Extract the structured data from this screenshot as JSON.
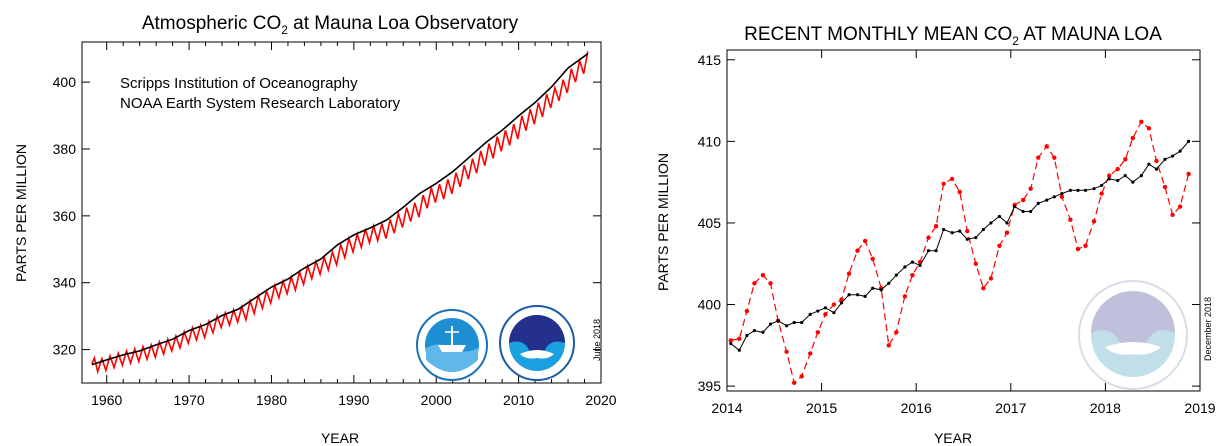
{
  "chart_data": [
    {
      "type": "line",
      "title_main": "Atmospheric CO",
      "title_sub": "2",
      "title_rest": " at Mauna Loa Observatory",
      "xlabel": "YEAR",
      "ylabel": "PARTS PER MILLION",
      "xlim": [
        1957,
        2020
      ],
      "ylim": [
        310,
        412
      ],
      "xticks": [
        "1960",
        "1970",
        "1980",
        "1990",
        "2000",
        "2010",
        "2020"
      ],
      "yticks": [
        "320",
        "340",
        "360",
        "380",
        "400"
      ],
      "annotations": [
        "Scripps Institution of Oceanography",
        "NOAA Earth System Research Laboratory"
      ],
      "date_stamp": "June 2018",
      "series": [
        {
          "color": "#ff0000",
          "x": [
            1958.2,
            1958.5,
            1958.9,
            1959.4,
            1959.9,
            1960.4,
            1960.9,
            1961.4,
            1961.9,
            1962.4,
            1962.9,
            1963.4,
            1963.9,
            1964.4,
            1964.9,
            1965.4,
            1965.9,
            1966.4,
            1966.9,
            1967.4,
            1967.9,
            1968.4,
            1968.9,
            1969.4,
            1969.9,
            1970.4,
            1970.9,
            1971.4,
            1971.9,
            1972.4,
            1972.9,
            1973.4,
            1973.9,
            1974.4,
            1974.9,
            1975.4,
            1975.9,
            1976.4,
            1976.9,
            1977.4,
            1977.9,
            1978.4,
            1978.9,
            1979.4,
            1979.9,
            1980.4,
            1980.9,
            1981.4,
            1981.9,
            1982.4,
            1982.9,
            1983.4,
            1983.9,
            1984.4,
            1984.9,
            1985.4,
            1985.9,
            1986.4,
            1986.9,
            1987.4,
            1987.9,
            1988.4,
            1988.9,
            1989.4,
            1989.9,
            1990.4,
            1990.9,
            1991.4,
            1991.9,
            1992.4,
            1992.9,
            1993.4,
            1993.9,
            1994.4,
            1994.9,
            1995.4,
            1995.9,
            1996.4,
            1996.9,
            1997.4,
            1997.9,
            1998.4,
            1998.9,
            1999.4,
            1999.9,
            2000.4,
            2000.9,
            2001.4,
            2001.9,
            2002.4,
            2002.9,
            2003.4,
            2003.9,
            2004.4,
            2004.9,
            2005.4,
            2005.9,
            2006.4,
            2006.9,
            2007.4,
            2007.9,
            2008.4,
            2008.9,
            2009.4,
            2009.9,
            2010.4,
            2010.9,
            2011.4,
            2011.9,
            2012.4,
            2012.9,
            2013.4,
            2013.9,
            2014.4,
            2014.9,
            2015.4,
            2015.9,
            2016.4,
            2016.9,
            2017.4,
            2017.9,
            2018.4
          ],
          "y": [
            315.7,
            317.5,
            313.4,
            317.3,
            313.8,
            318.1,
            314.6,
            318.9,
            315.3,
            319.6,
            315.9,
            320.2,
            316.4,
            320.9,
            317.1,
            321.4,
            317.7,
            322.3,
            318.6,
            323.1,
            319.6,
            324.0,
            320.5,
            325.3,
            321.9,
            326.5,
            322.9,
            327.3,
            323.6,
            328.4,
            325.0,
            330.0,
            326.6,
            331.0,
            327.3,
            331.9,
            328.2,
            332.8,
            328.9,
            334.6,
            330.8,
            336.1,
            332.3,
            337.5,
            333.9,
            339.2,
            335.5,
            340.5,
            336.7,
            341.7,
            337.8,
            343.2,
            339.5,
            345.0,
            341.2,
            346.4,
            342.5,
            347.6,
            343.8,
            349.2,
            345.4,
            351.4,
            347.5,
            353.2,
            349.2,
            354.6,
            350.6,
            356.1,
            351.9,
            357.0,
            352.6,
            357.6,
            353.2,
            358.9,
            354.8,
            360.6,
            356.5,
            362.5,
            358.3,
            363.9,
            359.6,
            366.2,
            362.3,
            368.4,
            364.0,
            369.5,
            365.0,
            370.9,
            366.6,
            372.9,
            368.7,
            375.1,
            371.0,
            377.1,
            372.8,
            379.4,
            375.0,
            381.6,
            377.2,
            383.7,
            379.3,
            385.6,
            381.1,
            387.4,
            383.0,
            389.9,
            385.5,
            391.9,
            387.4,
            393.8,
            389.6,
            396.4,
            392.3,
            398.3,
            394.4,
            400.7,
            396.8,
            404.0,
            400.0,
            406.5,
            402.5,
            409.2
          ]
        },
        {
          "color": "#000000",
          "x": [
            1958.2,
            1960,
            1962,
            1964,
            1966,
            1968,
            1970,
            1972,
            1974,
            1976,
            1978,
            1980,
            1982,
            1984,
            1986,
            1988,
            1990,
            1992,
            1994,
            1996,
            1998,
            2000,
            2002,
            2004,
            2006,
            2008,
            2010,
            2012,
            2014,
            2016,
            2018.4
          ],
          "y": [
            315.5,
            316.9,
            318.4,
            319.6,
            321.4,
            323.1,
            325.7,
            327.5,
            330.2,
            332.1,
            335.4,
            338.7,
            341.1,
            344.4,
            347.1,
            351.3,
            354.3,
            356.4,
            358.8,
            362.6,
            366.7,
            369.7,
            373.2,
            377.5,
            381.9,
            385.6,
            389.9,
            393.9,
            398.6,
            404.2,
            408.5
          ]
        }
      ]
    },
    {
      "type": "line",
      "title_main": "RECENT MONTHLY MEAN CO",
      "title_sub": "2",
      "title_rest": " AT MAUNA LOA",
      "xlabel": "YEAR",
      "ylabel": "PARTS PER MILLION",
      "xlim": [
        2014,
        2019
      ],
      "ylim": [
        394.7,
        415.6
      ],
      "xticks": [
        "2014",
        "2015",
        "2016",
        "2017",
        "2018",
        "2019"
      ],
      "yticks": [
        "395",
        "400",
        "405",
        "410",
        "415"
      ],
      "date_stamp": "December 2018",
      "series": [
        {
          "color": "#ff0000",
          "style": "dashed",
          "x": [
            2014.04,
            2014.13,
            2014.21,
            2014.29,
            2014.38,
            2014.46,
            2014.54,
            2014.63,
            2014.71,
            2014.79,
            2014.88,
            2014.96,
            2015.04,
            2015.13,
            2015.21,
            2015.29,
            2015.38,
            2015.46,
            2015.54,
            2015.63,
            2015.71,
            2015.79,
            2015.88,
            2015.96,
            2016.04,
            2016.13,
            2016.21,
            2016.29,
            2016.38,
            2016.46,
            2016.54,
            2016.63,
            2016.71,
            2016.79,
            2016.88,
            2016.96,
            2017.04,
            2017.13,
            2017.21,
            2017.29,
            2017.38,
            2017.46,
            2017.54,
            2017.63,
            2017.71,
            2017.79,
            2017.88,
            2017.96,
            2018.04,
            2018.13,
            2018.21,
            2018.29,
            2018.38,
            2018.46,
            2018.54,
            2018.63,
            2018.71,
            2018.79,
            2018.88
          ],
          "y": [
            397.8,
            397.9,
            399.6,
            401.3,
            401.8,
            401.3,
            399.0,
            397.1,
            395.2,
            395.6,
            397.0,
            398.3,
            399.4,
            400.0,
            400.3,
            401.9,
            403.3,
            403.9,
            402.8,
            401.0,
            397.5,
            398.3,
            400.5,
            401.8,
            402.6,
            404.1,
            404.8,
            407.4,
            407.7,
            406.9,
            404.5,
            402.5,
            401.0,
            401.6,
            403.6,
            404.4,
            406.1,
            406.4,
            407.1,
            409.0,
            409.7,
            409.0,
            406.6,
            405.2,
            403.4,
            403.6,
            405.1,
            406.8,
            407.9,
            408.3,
            408.9,
            410.2,
            411.2,
            410.8,
            408.8,
            407.2,
            405.5,
            406.0,
            408.0
          ]
        },
        {
          "color": "#000000",
          "style": "solid",
          "x": [
            2014.04,
            2014.13,
            2014.21,
            2014.29,
            2014.38,
            2014.46,
            2014.54,
            2014.63,
            2014.71,
            2014.79,
            2014.88,
            2014.96,
            2015.04,
            2015.13,
            2015.21,
            2015.29,
            2015.38,
            2015.46,
            2015.54,
            2015.63,
            2015.71,
            2015.79,
            2015.88,
            2015.96,
            2016.04,
            2016.13,
            2016.21,
            2016.29,
            2016.38,
            2016.46,
            2016.54,
            2016.63,
            2016.71,
            2016.79,
            2016.88,
            2016.96,
            2017.04,
            2017.13,
            2017.21,
            2017.29,
            2017.38,
            2017.46,
            2017.54,
            2017.63,
            2017.71,
            2017.79,
            2017.88,
            2017.96,
            2018.04,
            2018.13,
            2018.21,
            2018.29,
            2018.38,
            2018.46,
            2018.54,
            2018.63,
            2018.71,
            2018.79,
            2018.88
          ],
          "y": [
            397.6,
            397.2,
            398.1,
            398.4,
            398.3,
            398.8,
            399.0,
            398.7,
            398.9,
            398.9,
            399.4,
            399.6,
            399.8,
            399.5,
            400.1,
            400.6,
            400.6,
            400.5,
            401.0,
            400.9,
            401.3,
            401.8,
            402.3,
            402.6,
            402.4,
            403.3,
            403.3,
            404.6,
            404.4,
            404.5,
            404.0,
            404.1,
            404.6,
            405.0,
            405.4,
            405.0,
            406.0,
            405.7,
            405.7,
            406.2,
            406.4,
            406.6,
            406.8,
            407.0,
            407.0,
            407.0,
            407.1,
            407.3,
            407.7,
            407.6,
            407.9,
            407.5,
            407.9,
            408.6,
            408.3,
            408.9,
            409.1,
            409.4,
            410.0
          ]
        }
      ]
    }
  ]
}
